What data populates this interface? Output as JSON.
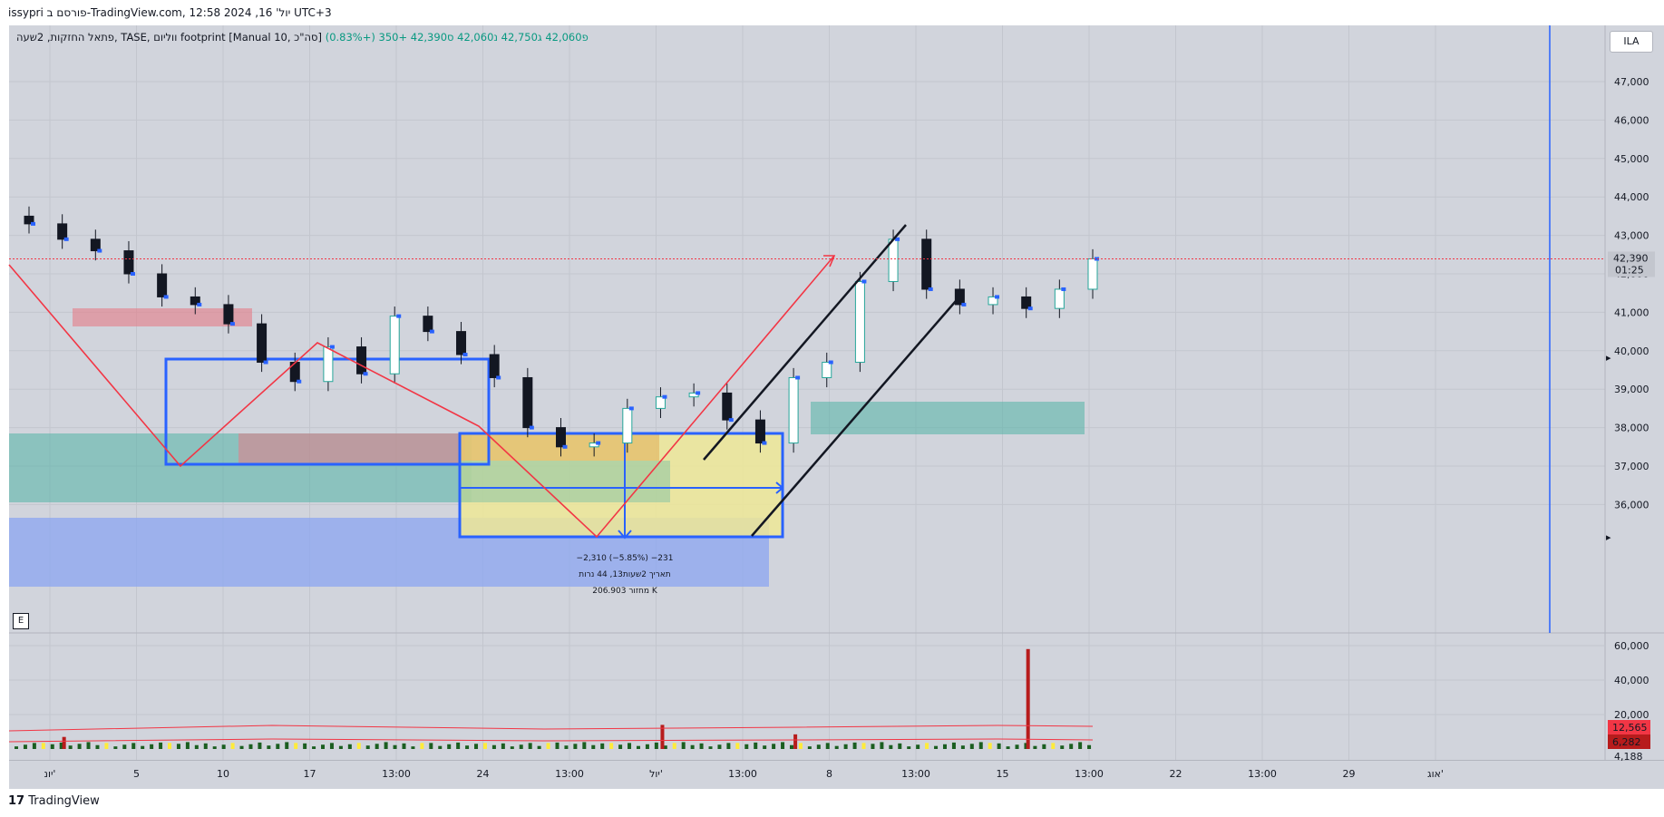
{
  "header": {
    "meta": "issypri פורסם ב-TradingView.com, יול' 16, 2024 12:58 UTC+3"
  },
  "legend": {
    "prefix": "פתאל החזקות, 2שעה, TASE, ווליום footprint [Manual 10, סה\"כ]",
    "o": "פ42,060",
    "h": "ג42,750",
    "l": "נ42,060",
    "c": "ס42,390",
    "change": "+350 (+0.83%)"
  },
  "buttons": {
    "currency": "ILA",
    "e": "E"
  },
  "footer": {
    "brand": "TradingView"
  },
  "measure": {
    "line1": "−2,310 (−5.85%) −231",
    "line2": "תאריך 2שעות13, 44 נרות",
    "line3": "206.903 מחזור K"
  },
  "price_scale": {
    "ticks": [
      "47,000",
      "46,000",
      "45,000",
      "44,000",
      "43,000",
      "42,000",
      "41,000",
      "40,000",
      "39,000",
      "38,000",
      "37,000",
      "36,000"
    ],
    "last_price": "42,390",
    "countdown": "01:25"
  },
  "volume_scale": {
    "ticks": [
      "60,000",
      "40,000",
      "20,000"
    ],
    "badge_high": "12,565",
    "badge_low": "6,282",
    "bottom_label": "4,188"
  },
  "time_axis": {
    "labels": [
      "יונ'",
      "5",
      "10",
      "17",
      "13:00",
      "24",
      "13:00",
      "יול'",
      "13:00",
      "8",
      "13:00",
      "15",
      "13:00",
      "22",
      "13:00",
      "29",
      "אוג'"
    ]
  },
  "colors": {
    "background": "#d1d4dc",
    "up_candle": "#26a69a",
    "down_candle": "#131722",
    "blue_volume_cells": "#2962ff",
    "price_line": "#f23645",
    "zone_red": "#e57c87",
    "zone_green": "#52b3a6",
    "zone_blue": "#8ba5f1",
    "zone_yellow": "#eee897",
    "zone_orange": "#e0a850",
    "rect_blue": "#2962ff",
    "vol_up": "#1b5e20",
    "vol_high": "#ffeb3b",
    "vol_spike": "#b71c1c"
  },
  "chart_data": {
    "type": "line",
    "title": "פתאל החזקות, 2שעה, TASE",
    "y_range": [
      35600,
      47600
    ],
    "volume_range": [
      4188,
      60000
    ],
    "price_path": [
      {
        "t": "יונ' 1",
        "price": 43300
      },
      {
        "t": "יונ' 3",
        "price": 42900
      },
      {
        "t": "יונ' 4",
        "price": 42600
      },
      {
        "t": "יונ' 5",
        "price": 42000
      },
      {
        "t": "יונ' 6",
        "price": 41400
      },
      {
        "t": "יונ' 7",
        "price": 41200
      },
      {
        "t": "יונ' 10",
        "price": 40700
      },
      {
        "t": "יונ' 11",
        "price": 39700
      },
      {
        "t": "יונ' 12",
        "price": 39200
      },
      {
        "t": "יונ' 13",
        "price": 40100
      },
      {
        "t": "יונ' 17",
        "price": 39400
      },
      {
        "t": "יונ' 18",
        "price": 40900
      },
      {
        "t": "יונ' 19",
        "price": 40500
      },
      {
        "t": "יונ' 20",
        "price": 39900
      },
      {
        "t": "יונ' 21",
        "price": 39300
      },
      {
        "t": "יונ' 23",
        "price": 38000
      },
      {
        "t": "יונ' 24",
        "price": 37500
      },
      {
        "t": "יונ' 25",
        "price": 37600
      },
      {
        "t": "יונ' 26",
        "price": 38500
      },
      {
        "t": "יונ' 27",
        "price": 38800
      },
      {
        "t": "יונ' 28",
        "price": 38900
      },
      {
        "t": "יול' 1",
        "price": 38200
      },
      {
        "t": "יול' 2",
        "price": 37600
      },
      {
        "t": "יול' 3",
        "price": 39300
      },
      {
        "t": "יול' 4",
        "price": 39700
      },
      {
        "t": "יול' 7",
        "price": 41800
      },
      {
        "t": "יול' 8",
        "price": 42900
      },
      {
        "t": "יול' 9",
        "price": 41600
      },
      {
        "t": "יול' 10",
        "price": 41200
      },
      {
        "t": "יול' 11",
        "price": 41400
      },
      {
        "t": "יול' 14",
        "price": 41100
      },
      {
        "t": "יול' 15",
        "price": 41600
      },
      {
        "t": "יול' 16",
        "price": 42390
      }
    ],
    "volume_spikes": [
      {
        "t": "יונ' 3",
        "volume": 7000
      },
      {
        "t": "יונ' 27",
        "volume": 14000
      },
      {
        "t": "יול' 3",
        "volume": 8500
      },
      {
        "t": "יול' 14",
        "volume": 58000
      }
    ]
  }
}
